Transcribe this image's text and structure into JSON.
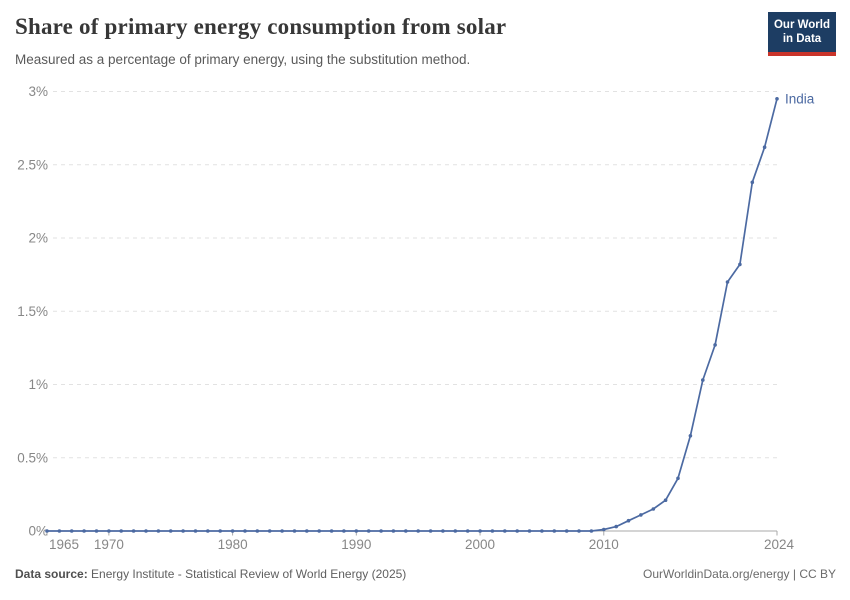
{
  "header": {
    "title": "Share of primary energy consumption from solar",
    "subtitle": "Measured as a percentage of primary energy, using the substitution method.",
    "logo": {
      "line1": "Our World",
      "line2": "in Data"
    }
  },
  "chart_data": {
    "type": "line",
    "title": "Share of primary energy consumption from solar",
    "subtitle": "Measured as a percentage of primary energy, using the substitution method.",
    "xlabel": "",
    "ylabel": "",
    "xlim": [
      1965,
      2024
    ],
    "ylim": [
      0,
      3
    ],
    "grid": "horizontal dashed",
    "legend_position": "end-of-line label",
    "xticks": [
      1965,
      1970,
      1980,
      1990,
      2000,
      2010,
      2024
    ],
    "yticks": [
      "0%",
      "0.5%",
      "1%",
      "1.5%",
      "2%",
      "2.5%",
      "3%"
    ],
    "ytick_values": [
      0,
      0.5,
      1,
      1.5,
      2,
      2.5,
      3
    ],
    "series": [
      {
        "name": "India",
        "color": "#4c6aa2",
        "x": [
          1965,
          1966,
          1967,
          1968,
          1969,
          1970,
          1971,
          1972,
          1973,
          1974,
          1975,
          1976,
          1977,
          1978,
          1979,
          1980,
          1981,
          1982,
          1983,
          1984,
          1985,
          1986,
          1987,
          1988,
          1989,
          1990,
          1991,
          1992,
          1993,
          1994,
          1995,
          1996,
          1997,
          1998,
          1999,
          2000,
          2001,
          2002,
          2003,
          2004,
          2005,
          2006,
          2007,
          2008,
          2009,
          2010,
          2011,
          2012,
          2013,
          2014,
          2015,
          2016,
          2017,
          2018,
          2019,
          2020,
          2021,
          2022,
          2023,
          2024
        ],
        "values": [
          0,
          0,
          0,
          0,
          0,
          0,
          0,
          0,
          0,
          0,
          0,
          0,
          0,
          0,
          0,
          0,
          0,
          0,
          0,
          0,
          0,
          0,
          0,
          0,
          0,
          0,
          0,
          0,
          0,
          0,
          0,
          0,
          0,
          0,
          0,
          0,
          0,
          0,
          0,
          0,
          0,
          0,
          0,
          0,
          0,
          0.01,
          0.03,
          0.07,
          0.11,
          0.15,
          0.21,
          0.36,
          0.65,
          1.03,
          1.27,
          1.7,
          1.82,
          2.38,
          2.62,
          2.95
        ]
      }
    ]
  },
  "footer": {
    "source_label": "Data source:",
    "source_text": "Energy Institute - Statistical Review of World Energy (2025)",
    "right_text": "OurWorldinData.org/energy | CC BY"
  },
  "colors": {
    "line": "#4c6aa2",
    "grid": "#e2e2e2",
    "axis": "#a9a9a9",
    "tick_label": "#878787",
    "title": "#373737",
    "subtitle": "#5a5a5a",
    "logo_bg": "#1d3d63",
    "logo_red": "#c9342a"
  }
}
